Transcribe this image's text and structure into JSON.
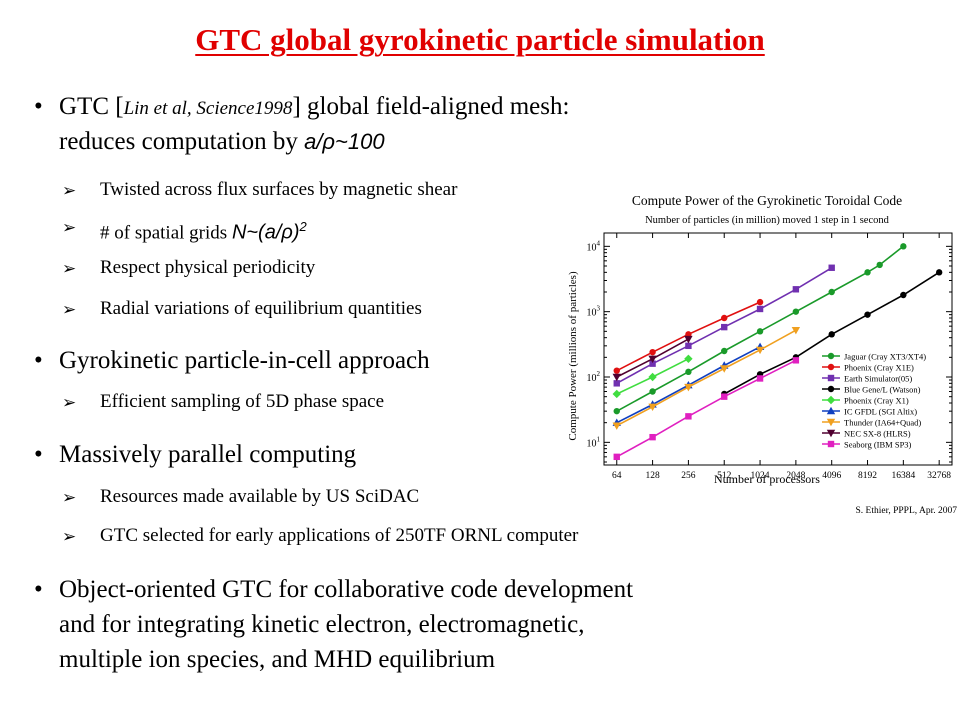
{
  "title": "GTC global gyrokinetic  particle simulation",
  "bullets": {
    "b1": {
      "pre": "GTC [",
      "cite": "Lin et al, Science1998",
      "post": "] global field-aligned mesh:",
      "line2": "reduces computation by ",
      "line2_math": "a/ρ~100"
    },
    "b1_sub": [
      "Twisted across flux surfaces by magnetic shear",
      "# of spatial grids ",
      "Respect physical periodicity",
      "Radial variations of equilibrium quantities"
    ],
    "b1_sub2_math": "N~(a/ρ)",
    "b1_sub2_exp": "2",
    "b2": "Gyrokinetic particle-in-cell approach",
    "b2_sub": [
      "Efficient sampling of 5D phase space"
    ],
    "b3": "Massively parallel computing",
    "b3_sub": [
      "Resources made available by US SciDAC",
      "GTC selected for early applications of 250TF ORNL computer"
    ],
    "b4": [
      "Object-oriented GTC for collaborative code development",
      "and for integrating kinetic electron, electromagnetic,",
      "multiple ion species, and MHD equilibrium"
    ]
  },
  "chart_data": {
    "type": "line",
    "title": "Compute Power of the Gyrokinetic Toroidal Code",
    "subtitle": "Number of particles (in million) moved 1 step in 1 second",
    "xlabel": "Number of processors",
    "ylabel": "Compute Power (millions of particles)",
    "credit": "S. Ethier, PPPL, Apr. 2007",
    "x_scale": "log2",
    "y_scale": "log10",
    "x_ticks": [
      "64",
      "128",
      "256",
      "512",
      "1024",
      "2048",
      "4096",
      "8192",
      "16384",
      "32768"
    ],
    "y_ticks": [
      "10^1",
      "10^2",
      "10^3",
      "10^4"
    ],
    "ylim": [
      4.5,
      16000
    ],
    "legend_position": "bottom-right",
    "series": [
      {
        "name": "Jaguar (Cray XT3/XT4)",
        "color": "#1a9a2a",
        "marker": "circle",
        "x": [
          64,
          128,
          256,
          512,
          1024,
          2048,
          4096,
          8192,
          10368,
          16384
        ],
        "y": [
          30,
          60,
          120,
          250,
          500,
          1000,
          2000,
          4000,
          5200,
          10000
        ]
      },
      {
        "name": "Phoenix (Cray X1E)",
        "color": "#e01010",
        "marker": "circle",
        "x": [
          64,
          128,
          256,
          512,
          1024
        ],
        "y": [
          125,
          240,
          450,
          800,
          1400
        ]
      },
      {
        "name": "Earth Simulator(05)",
        "color": "#7030b0",
        "marker": "square",
        "x": [
          64,
          128,
          256,
          512,
          1024,
          2048,
          4096
        ],
        "y": [
          80,
          160,
          300,
          580,
          1100,
          2200,
          4700
        ]
      },
      {
        "name": "Blue Gene/L (Watson)",
        "color": "#000000",
        "marker": "circle",
        "x": [
          512,
          1024,
          2048,
          4096,
          8192,
          16384,
          32768
        ],
        "y": [
          55,
          110,
          200,
          450,
          900,
          1800,
          4000
        ]
      },
      {
        "name": "Phoenix (Cray X1)",
        "color": "#40dd40",
        "marker": "diamond",
        "x": [
          64,
          128,
          256
        ],
        "y": [
          55,
          100,
          190
        ]
      },
      {
        "name": "IC GFDL (SGI Altix)",
        "color": "#1040c0",
        "marker": "triangle-up",
        "x": [
          64,
          128,
          256,
          512,
          1024
        ],
        "y": [
          20,
          38,
          75,
          150,
          290
        ]
      },
      {
        "name": "Thunder (IA64+Quad)",
        "color": "#f0a020",
        "marker": "triangle-down",
        "x": [
          64,
          128,
          256,
          512,
          1024,
          2048
        ],
        "y": [
          18,
          35,
          70,
          135,
          260,
          520
        ]
      },
      {
        "name": "NEC SX-8 (HLRS)",
        "color": "#500030",
        "marker": "triangle-down",
        "x": [
          64,
          128,
          256
        ],
        "y": [
          100,
          190,
          380
        ]
      },
      {
        "name": "Seaborg (IBM SP3)",
        "color": "#e020c0",
        "marker": "square",
        "x": [
          64,
          128,
          256,
          512,
          1024,
          2048
        ],
        "y": [
          6,
          12,
          25,
          50,
          95,
          180
        ]
      }
    ]
  }
}
